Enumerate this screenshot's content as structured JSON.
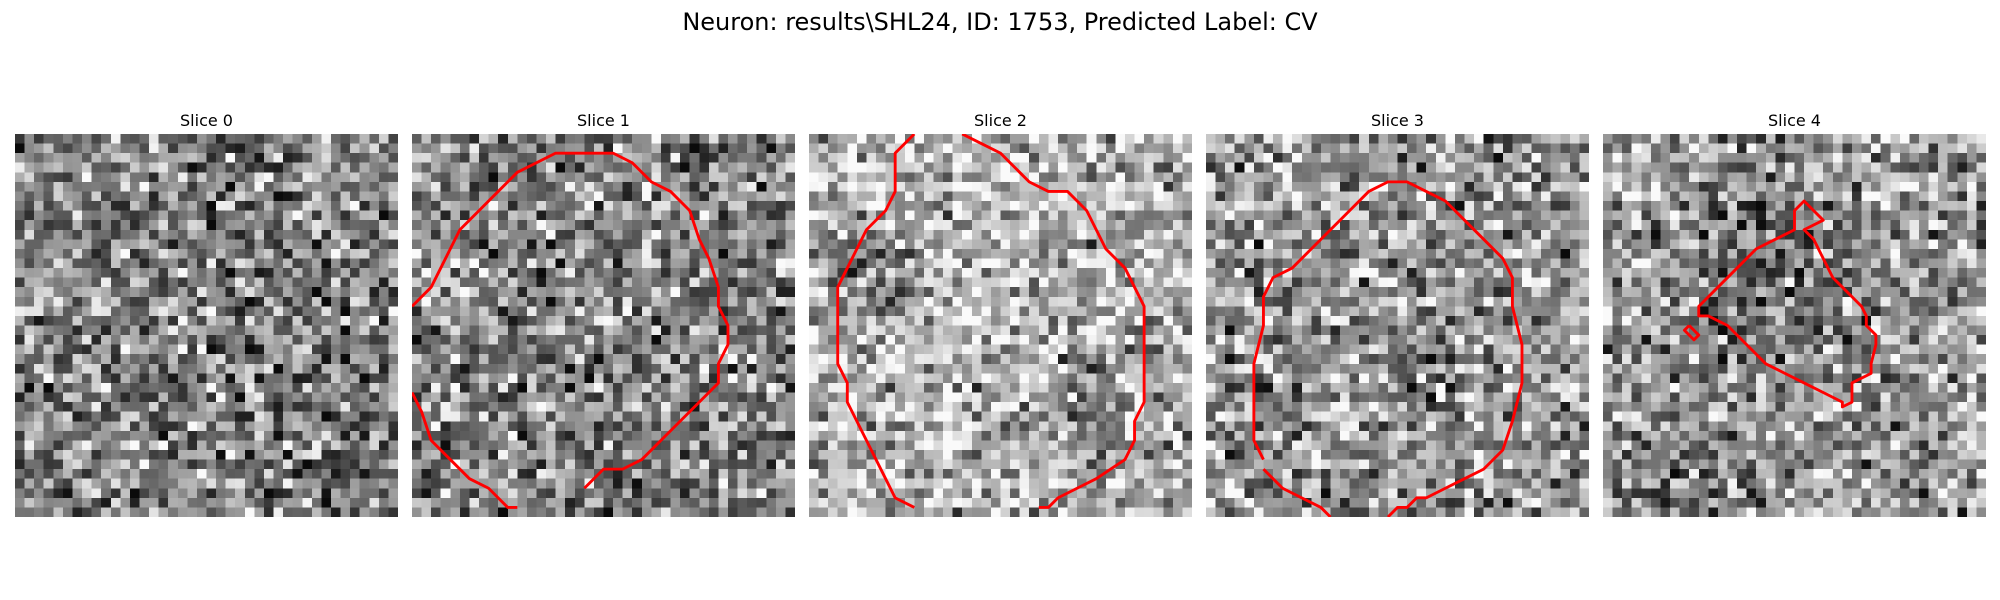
{
  "figure": {
    "title": "Neuron: results\\SHL24, ID: 1753, Predicted Label: CV"
  },
  "contour_color": "#ff0000",
  "slices": [
    {
      "title": "Slice 0",
      "seed": 11,
      "base": 0.5,
      "blobs": [],
      "contours": []
    },
    {
      "title": "Slice 1",
      "seed": 23,
      "base": 0.5,
      "blobs": [
        [
          14.5,
          15.5,
          12,
          0.05
        ]
      ],
      "contours": [
        [
          [
            0,
            18
          ],
          [
            2,
            16
          ],
          [
            3,
            14
          ],
          [
            4,
            12
          ],
          [
            5,
            10
          ],
          [
            7,
            8
          ],
          [
            9,
            6
          ],
          [
            11,
            4
          ],
          [
            13,
            3
          ],
          [
            15,
            2
          ],
          [
            17,
            2
          ],
          [
            19,
            2
          ],
          [
            21,
            2
          ],
          [
            23,
            3
          ],
          [
            25,
            5
          ],
          [
            27,
            6
          ],
          [
            29,
            8
          ],
          [
            30,
            11
          ],
          [
            31,
            13
          ],
          [
            32,
            16
          ],
          [
            32,
            18
          ],
          [
            33,
            20
          ],
          [
            33,
            22
          ],
          [
            32,
            24
          ],
          [
            32,
            26
          ],
          [
            30,
            28
          ],
          [
            28,
            30
          ],
          [
            26,
            32
          ],
          [
            24,
            34
          ],
          [
            22,
            35
          ],
          [
            20,
            35
          ],
          [
            18,
            37
          ]
        ],
        [
          [
            0,
            27
          ],
          [
            1,
            29
          ],
          [
            2,
            32
          ],
          [
            4,
            34
          ],
          [
            6,
            36
          ],
          [
            8,
            37
          ],
          [
            9,
            38
          ],
          [
            10,
            39
          ],
          [
            11,
            39
          ]
        ]
      ]
    },
    {
      "title": "Slice 2",
      "seed": 37,
      "base": 0.68,
      "blobs": [
        [
          14,
          17,
          11,
          0.1
        ],
        [
          6,
          13,
          3.5,
          -0.32
        ],
        [
          29,
          29,
          3,
          -0.28
        ],
        [
          4,
          3,
          5,
          0.07
        ]
      ],
      "contours": [
        [
          [
            11,
            0
          ],
          [
            9,
            2
          ],
          [
            9,
            4
          ],
          [
            9,
            6
          ],
          [
            8,
            8
          ],
          [
            6,
            10
          ],
          [
            5,
            12
          ],
          [
            4,
            14
          ],
          [
            3,
            16
          ],
          [
            3,
            18
          ],
          [
            3,
            20
          ],
          [
            3,
            22
          ],
          [
            3,
            24
          ],
          [
            4,
            26
          ],
          [
            4,
            28
          ],
          [
            5,
            30
          ],
          [
            6,
            32
          ],
          [
            7,
            34
          ],
          [
            8,
            36
          ],
          [
            9,
            38
          ],
          [
            11,
            39
          ]
        ],
        [
          [
            16,
            0
          ],
          [
            18,
            1
          ],
          [
            20,
            2
          ],
          [
            21,
            3
          ],
          [
            22,
            4
          ],
          [
            23,
            5
          ],
          [
            25,
            6
          ],
          [
            27,
            6
          ],
          [
            28,
            7
          ],
          [
            29,
            8
          ],
          [
            30,
            10
          ],
          [
            31,
            12
          ],
          [
            33,
            14
          ],
          [
            34,
            16
          ],
          [
            35,
            18
          ],
          [
            35,
            20
          ],
          [
            35,
            22
          ],
          [
            35,
            24
          ],
          [
            35,
            26
          ],
          [
            35,
            28
          ],
          [
            34,
            30
          ],
          [
            34,
            32
          ],
          [
            33,
            34
          ],
          [
            30,
            36
          ],
          [
            28,
            37
          ],
          [
            26,
            38
          ],
          [
            25,
            39
          ],
          [
            24,
            39
          ]
        ]
      ]
    },
    {
      "title": "Slice 3",
      "seed": 51,
      "base": 0.6,
      "blobs": [
        [
          20,
          18,
          10,
          -0.05
        ]
      ],
      "contours": [
        [
          [
            6,
            35
          ],
          [
            8,
            37
          ],
          [
            10,
            38
          ],
          [
            12,
            39
          ],
          [
            13,
            40
          ]
        ],
        [
          [
            6,
            34
          ],
          [
            5,
            32
          ],
          [
            5,
            28
          ],
          [
            5,
            24
          ],
          [
            6,
            20
          ],
          [
            6,
            17
          ],
          [
            7,
            15
          ],
          [
            9,
            14
          ],
          [
            11,
            12
          ],
          [
            13,
            10
          ],
          [
            15,
            8
          ],
          [
            17,
            6
          ],
          [
            19,
            5
          ],
          [
            21,
            5
          ],
          [
            23,
            6
          ],
          [
            25,
            7
          ],
          [
            27,
            9
          ],
          [
            29,
            11
          ],
          [
            31,
            13
          ],
          [
            32,
            15
          ],
          [
            32,
            18
          ],
          [
            33,
            22
          ],
          [
            33,
            26
          ],
          [
            32,
            30
          ],
          [
            31,
            33
          ],
          [
            29,
            35
          ],
          [
            27,
            36
          ],
          [
            25,
            37
          ],
          [
            23,
            38
          ],
          [
            22,
            38
          ],
          [
            21,
            39
          ],
          [
            20,
            39
          ],
          [
            19,
            40
          ]
        ]
      ]
    },
    {
      "title": "Slice 4",
      "seed": 67,
      "base": 0.62,
      "blobs": [
        [
          17,
          16,
          7,
          -0.22
        ],
        [
          8,
          37,
          4,
          -0.15
        ],
        [
          3,
          3,
          5,
          0.08
        ]
      ],
      "contours": [
        [
          [
            22,
            8
          ],
          [
            21,
            7
          ],
          [
            20,
            8
          ],
          [
            20,
            10
          ],
          [
            18,
            11
          ],
          [
            16,
            12
          ],
          [
            14,
            14
          ],
          [
            12,
            16
          ],
          [
            10,
            18
          ],
          [
            10,
            19
          ],
          [
            11,
            19
          ],
          [
            13,
            20
          ],
          [
            15,
            22
          ],
          [
            17,
            24
          ],
          [
            19,
            25
          ],
          [
            21,
            26
          ],
          [
            23,
            27
          ],
          [
            25,
            28
          ],
          [
            25,
            28.5
          ],
          [
            26,
            28
          ],
          [
            26,
            26
          ],
          [
            28,
            25
          ],
          [
            28,
            24
          ],
          [
            28.5,
            22
          ],
          [
            28.5,
            21
          ],
          [
            27.5,
            20
          ],
          [
            27.5,
            19
          ],
          [
            27,
            18
          ],
          [
            26,
            17
          ],
          [
            25,
            16
          ],
          [
            24,
            15
          ],
          [
            23,
            13
          ],
          [
            22,
            11
          ],
          [
            21,
            10
          ],
          [
            23,
            9
          ],
          [
            22,
            8
          ]
        ],
        [
          [
            9,
            20
          ],
          [
            10,
            21
          ],
          [
            9.5,
            21.5
          ],
          [
            8.5,
            20.5
          ],
          [
            9,
            20
          ]
        ]
      ]
    }
  ]
}
